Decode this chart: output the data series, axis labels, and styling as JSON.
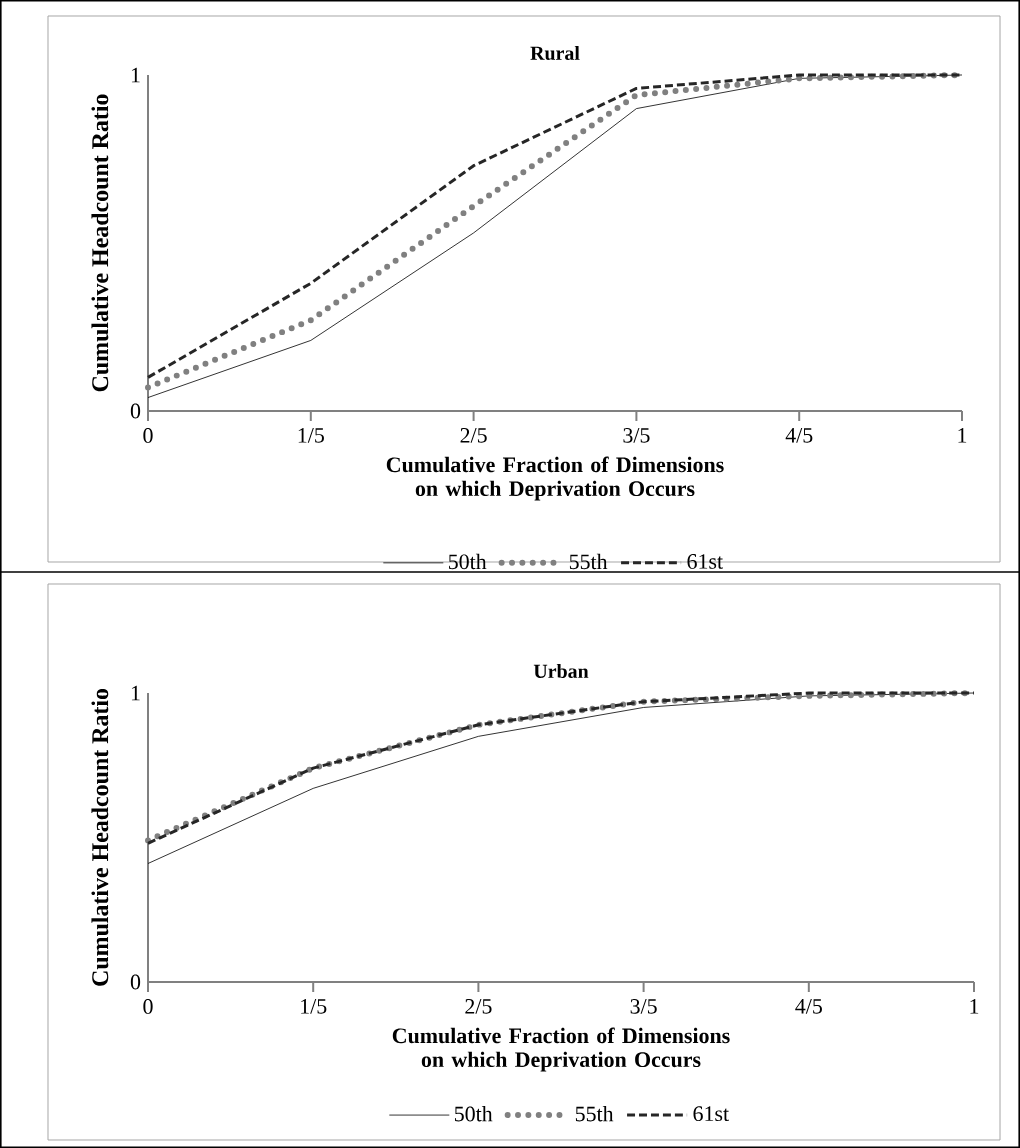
{
  "chart_data": [
    {
      "type": "line",
      "title": "Rural",
      "xlabel": "Cumulative Fraction of Dimensions on which Deprivation Occurs",
      "ylabel": "Cumulative Headcount Ratio",
      "x": [
        0,
        0.2,
        0.4,
        0.6,
        0.8,
        1
      ],
      "xlim": [
        0,
        1
      ],
      "xticks": [
        0,
        {
          "value": 0.2,
          "label": "1/5"
        },
        {
          "value": 0.4,
          "label": "2/5"
        },
        {
          "value": 0.6,
          "label": "3/5"
        },
        {
          "value": 0.8,
          "label": "4/5"
        },
        1
      ],
      "ylim": [
        0,
        1
      ],
      "yticks": [
        0,
        1
      ],
      "legend": "bottom",
      "series": [
        {
          "name": "50th",
          "color": "#000000",
          "line_style": "solid",
          "values": [
            0.04,
            0.21,
            0.53,
            0.9,
            0.99,
            1
          ]
        },
        {
          "name": "55th",
          "color": "#808080",
          "line_style": "dotted",
          "values": [
            0.07,
            0.27,
            0.61,
            0.94,
            0.99,
            1
          ]
        },
        {
          "name": "61st",
          "color": "#262626",
          "line_style": "dashed",
          "values": [
            0.1,
            0.38,
            0.73,
            0.96,
            1,
            1
          ]
        }
      ]
    },
    {
      "type": "line",
      "title": "Urban",
      "xlabel": "Cumulative Fraction of Dimensions on which Deprivation Occurs",
      "ylabel": "Cumulative Headcount Ratio",
      "x": [
        0,
        0.2,
        0.4,
        0.6,
        0.8,
        1
      ],
      "xlim": [
        0,
        1
      ],
      "xticks": [
        0,
        {
          "value": 0.2,
          "label": "1/5"
        },
        {
          "value": 0.4,
          "label": "2/5"
        },
        {
          "value": 0.6,
          "label": "3/5"
        },
        {
          "value": 0.8,
          "label": "4/5"
        },
        1
      ],
      "ylim": [
        0,
        1
      ],
      "yticks": [
        0,
        1
      ],
      "legend": "bottom",
      "series": [
        {
          "name": "50th",
          "color": "#000000",
          "line_style": "solid",
          "values": [
            0.41,
            0.67,
            0.85,
            0.95,
            0.99,
            1
          ]
        },
        {
          "name": "55th",
          "color": "#808080",
          "line_style": "dotted",
          "values": [
            0.49,
            0.74,
            0.89,
            0.97,
            0.99,
            1
          ]
        },
        {
          "name": "61st",
          "color": "#262626",
          "line_style": "dashed",
          "values": [
            0.48,
            0.74,
            0.89,
            0.97,
            1,
            1
          ]
        }
      ]
    }
  ]
}
